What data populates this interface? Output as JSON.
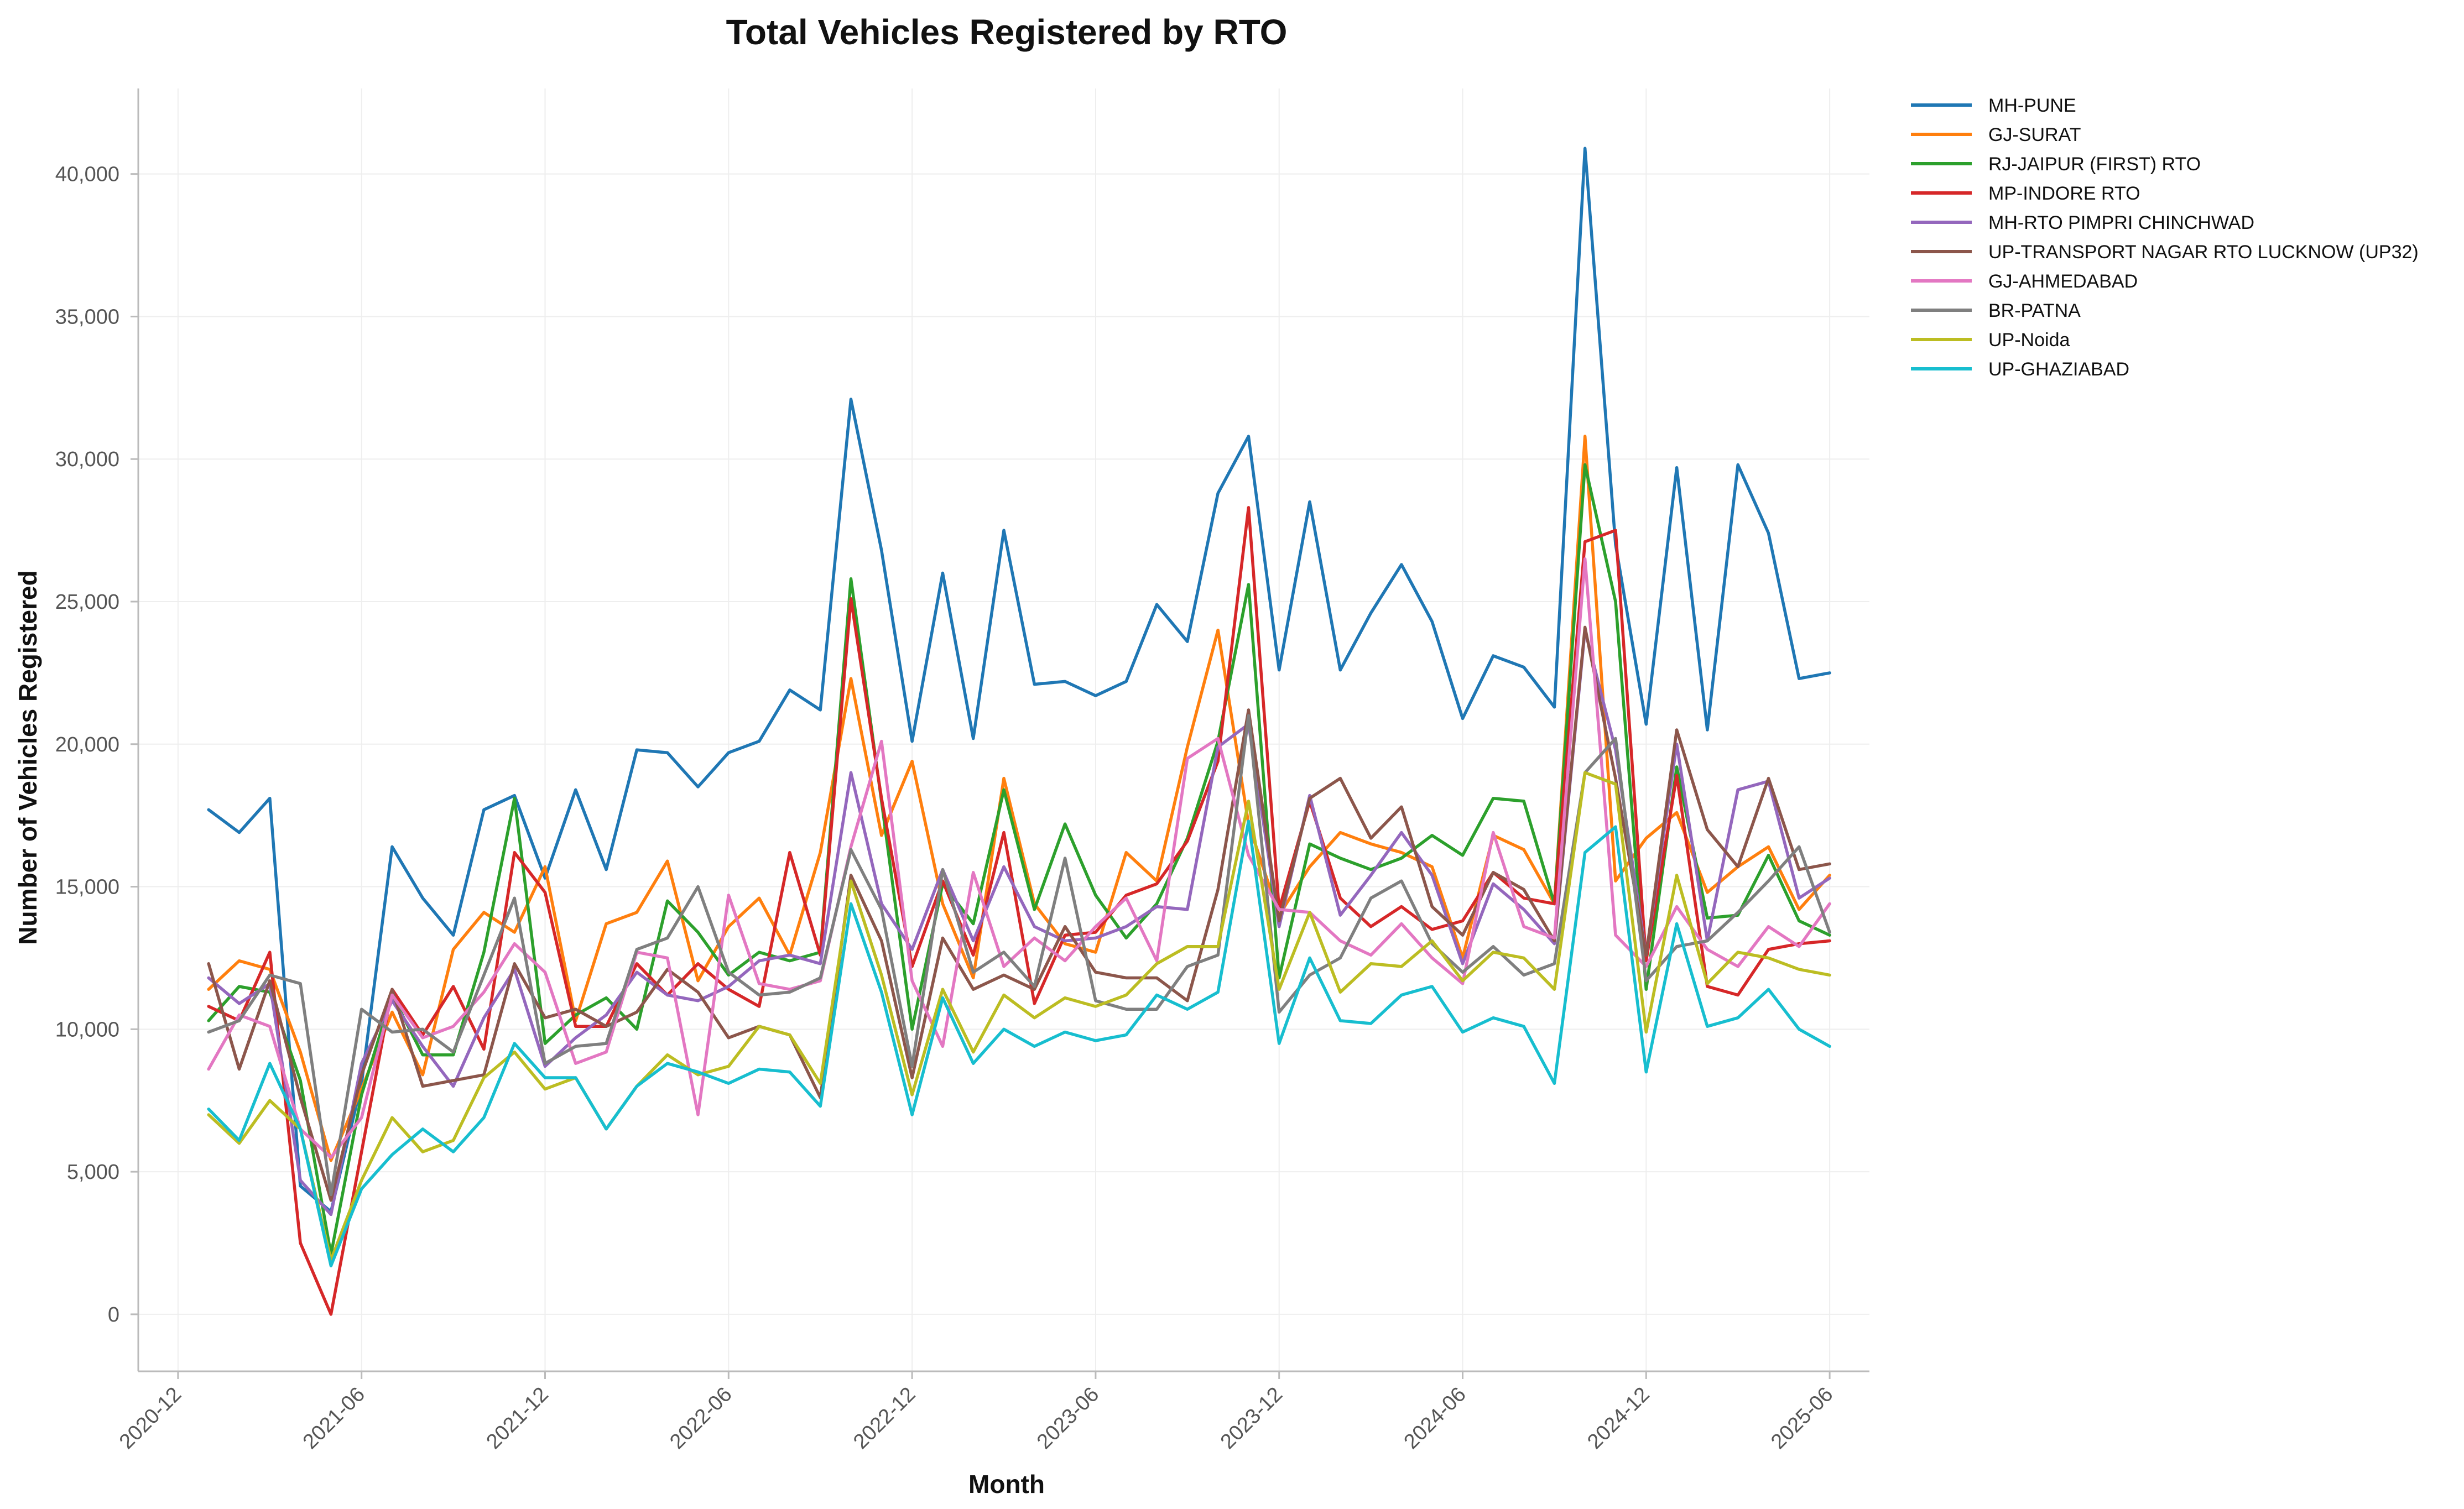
{
  "chart_data": {
    "type": "line",
    "title": "Total Vehicles Registered by RTO",
    "xlabel": "Month",
    "ylabel": "Number of Vehicles Registered",
    "ylim": [
      -2000,
      43000
    ],
    "yticks": [
      0,
      5000,
      10000,
      15000,
      20000,
      25000,
      30000,
      35000,
      40000
    ],
    "ytick_labels": [
      "0",
      "5,000",
      "10,000",
      "15,000",
      "20,000",
      "25,000",
      "30,000",
      "35,000",
      "40,000"
    ],
    "xlim": [
      "2020-11",
      "2025-07"
    ],
    "xtick_months": [
      "2020-12",
      "2021-06",
      "2021-12",
      "2022-06",
      "2022-12",
      "2023-06",
      "2023-12",
      "2024-06",
      "2024-12",
      "2025-06"
    ],
    "xtick_labels": [
      "2020-12",
      "2021-06",
      "2021-12",
      "2022-06",
      "2022-12",
      "2023-06",
      "2023-12",
      "2024-06",
      "2024-12",
      "2025-06"
    ],
    "grid": true,
    "legend_position": "outside-top-right",
    "x": [
      "2021-01",
      "2021-02",
      "2021-03",
      "2021-04",
      "2021-05",
      "2021-06",
      "2021-07",
      "2021-08",
      "2021-09",
      "2021-10",
      "2021-11",
      "2021-12",
      "2022-01",
      "2022-02",
      "2022-03",
      "2022-04",
      "2022-05",
      "2022-06",
      "2022-07",
      "2022-08",
      "2022-09",
      "2022-10",
      "2022-11",
      "2022-12",
      "2023-01",
      "2023-02",
      "2023-03",
      "2023-04",
      "2023-05",
      "2023-06",
      "2023-07",
      "2023-08",
      "2023-09",
      "2023-10",
      "2023-11",
      "2023-12",
      "2024-01",
      "2024-02",
      "2024-03",
      "2024-04",
      "2024-05",
      "2024-06",
      "2024-07",
      "2024-08",
      "2024-09",
      "2024-10",
      "2024-11",
      "2024-12",
      "2025-01",
      "2025-02",
      "2025-03",
      "2025-04",
      "2025-05",
      "2025-06"
    ],
    "series": [
      {
        "name": "MH-PUNE",
        "color": "#1f77b4",
        "values": [
          17700,
          16900,
          18100,
          4500,
          3600,
          8100,
          16400,
          14600,
          13300,
          17700,
          18200,
          15300,
          18400,
          15600,
          19800,
          19700,
          18500,
          19700,
          20100,
          21900,
          21200,
          32100,
          26800,
          20100,
          26000,
          20200,
          27500,
          22100,
          22200,
          21700,
          22200,
          24900,
          23600,
          28800,
          30800,
          22600,
          28500,
          22600,
          24600,
          26300,
          24300,
          20900,
          23100,
          22700,
          21300,
          40900,
          27000,
          20700,
          29700,
          20500,
          29800,
          27400,
          22300,
          22500
        ]
      },
      {
        "name": "GJ-SURAT",
        "color": "#ff7f0e",
        "values": [
          11400,
          12400,
          12100,
          9200,
          5400,
          7900,
          10600,
          8400,
          12800,
          14100,
          13400,
          15700,
          10300,
          13700,
          14100,
          15900,
          11700,
          13600,
          14600,
          12600,
          16200,
          22300,
          16800,
          19400,
          14400,
          11800,
          18800,
          14400,
          13000,
          12700,
          16200,
          15200,
          19900,
          24000,
          17200,
          14000,
          15700,
          16900,
          16500,
          16200,
          15700,
          12500,
          16800,
          16300,
          14400,
          30800,
          15200,
          16700,
          17600,
          14800,
          15700,
          16400,
          14200,
          15400
        ]
      },
      {
        "name": "RJ-JAIPUR (FIRST) RTO",
        "color": "#2ca02c",
        "values": [
          10300,
          11500,
          11300,
          8200,
          2100,
          7700,
          11200,
          9100,
          9100,
          12700,
          18100,
          9500,
          10500,
          11100,
          10000,
          14500,
          13400,
          11900,
          12700,
          12400,
          12700,
          25800,
          18000,
          10000,
          15100,
          13700,
          18400,
          14200,
          17200,
          14700,
          13200,
          14400,
          16700,
          20100,
          25600,
          11800,
          16500,
          16000,
          15600,
          16000,
          16800,
          16100,
          18100,
          18000,
          14400,
          29800,
          25000,
          11400,
          19200,
          13900,
          14000,
          16100,
          13800,
          13300
        ]
      },
      {
        "name": "MP-INDORE RTO",
        "color": "#d62728",
        "values": [
          10800,
          10300,
          12700,
          2500,
          0,
          5700,
          11400,
          9800,
          11500,
          9300,
          16200,
          14800,
          10100,
          10100,
          12300,
          11200,
          12300,
          11400,
          10800,
          16200,
          12600,
          25100,
          18100,
          12200,
          15200,
          12600,
          16900,
          10900,
          13300,
          13400,
          14700,
          15100,
          16600,
          19400,
          28300,
          14200,
          18000,
          14600,
          13600,
          14300,
          13500,
          13800,
          15500,
          14600,
          14400,
          27100,
          27500,
          12400,
          18900,
          11500,
          11200,
          12800,
          13000,
          13100
        ]
      },
      {
        "name": "MH-RTO PIMPRI CHINCHWAD",
        "color": "#9467bd",
        "values": [
          11800,
          10900,
          11600,
          4700,
          3500,
          8800,
          11000,
          9400,
          8000,
          10400,
          12100,
          8700,
          9700,
          10500,
          12000,
          11200,
          11000,
          11500,
          12400,
          12600,
          12300,
          19000,
          14400,
          12800,
          15600,
          13100,
          15700,
          13600,
          13100,
          13200,
          13600,
          14300,
          14200,
          19900,
          20700,
          13600,
          18200,
          14000,
          15400,
          16900,
          15400,
          12300,
          15100,
          14200,
          13000,
          24000,
          19800,
          12600,
          20000,
          13100,
          18400,
          18700,
          14600,
          15300
        ]
      },
      {
        "name": "UP-TRANSPORT NAGAR RTO LUCKNOW (UP32)",
        "color": "#8c564b",
        "values": [
          12300,
          8600,
          11700,
          7600,
          4000,
          8400,
          11400,
          8000,
          8200,
          8400,
          12300,
          10400,
          10700,
          10100,
          10600,
          12100,
          11300,
          9700,
          10100,
          9800,
          7600,
          15400,
          13100,
          8300,
          13200,
          11400,
          11900,
          11400,
          13600,
          12000,
          11800,
          11800,
          11000,
          14900,
          21200,
          13800,
          18100,
          18800,
          16700,
          17800,
          14300,
          13300,
          15500,
          14900,
          13100,
          24100,
          18800,
          12600,
          20500,
          17000,
          15700,
          18800,
          15600,
          15800
        ]
      },
      {
        "name": "GJ-AHMEDABAD",
        "color": "#e377c2",
        "values": [
          8600,
          10500,
          10100,
          6500,
          5500,
          6900,
          11200,
          9700,
          10100,
          11300,
          13000,
          12000,
          8800,
          9200,
          12700,
          12500,
          7000,
          14700,
          11600,
          11400,
          11700,
          16400,
          20100,
          11700,
          9400,
          15500,
          12200,
          13200,
          12400,
          13600,
          14600,
          12400,
          19500,
          20200,
          16100,
          14200,
          14100,
          13100,
          12600,
          13700,
          12500,
          11600,
          16900,
          13600,
          13200,
          26500,
          13300,
          12200,
          14300,
          12800,
          12200,
          13600,
          12900,
          14400
        ]
      },
      {
        "name": "BR-PATNA",
        "color": "#7f7f7f",
        "values": [
          9900,
          10300,
          11900,
          11600,
          4200,
          10700,
          9900,
          10000,
          9200,
          11900,
          14600,
          8800,
          9400,
          9500,
          12800,
          13200,
          15000,
          12000,
          11200,
          11300,
          11800,
          16300,
          14200,
          8700,
          15600,
          12000,
          12700,
          11500,
          16000,
          11000,
          10700,
          10700,
          12200,
          12600,
          21000,
          10600,
          11900,
          12500,
          14600,
          15200,
          13000,
          12000,
          12900,
          11900,
          12300,
          19000,
          20200,
          11700,
          12900,
          13100,
          14100,
          15200,
          16400,
          13400
        ]
      },
      {
        "name": "UP-Noida",
        "color": "#bcbd22",
        "values": [
          7000,
          6000,
          7500,
          6500,
          1900,
          4700,
          6900,
          5700,
          6100,
          8300,
          9200,
          7900,
          8300,
          6500,
          8000,
          9100,
          8400,
          8700,
          10100,
          9800,
          8100,
          15200,
          11900,
          7700,
          11400,
          9200,
          11200,
          10400,
          11100,
          10800,
          11200,
          12300,
          12900,
          12900,
          18000,
          11400,
          14100,
          11300,
          12300,
          12200,
          13100,
          11700,
          12700,
          12500,
          11400,
          19000,
          18600,
          9900,
          15400,
          11600,
          12700,
          12500,
          12100,
          11900
        ]
      },
      {
        "name": "UP-GHAZIABAD",
        "color": "#17becf",
        "values": [
          7200,
          6100,
          8800,
          6500,
          1700,
          4400,
          5600,
          6500,
          5700,
          6900,
          9500,
          8300,
          8300,
          6500,
          8000,
          8800,
          8500,
          8100,
          8600,
          8500,
          7300,
          14400,
          11300,
          7000,
          11100,
          8800,
          10000,
          9400,
          9900,
          9600,
          9800,
          11200,
          10700,
          11300,
          17300,
          9500,
          12500,
          10300,
          10200,
          11200,
          11500,
          9900,
          10400,
          10100,
          8100,
          16200,
          17100,
          8500,
          13700,
          10100,
          10400,
          11400,
          10000,
          9400
        ]
      }
    ]
  }
}
